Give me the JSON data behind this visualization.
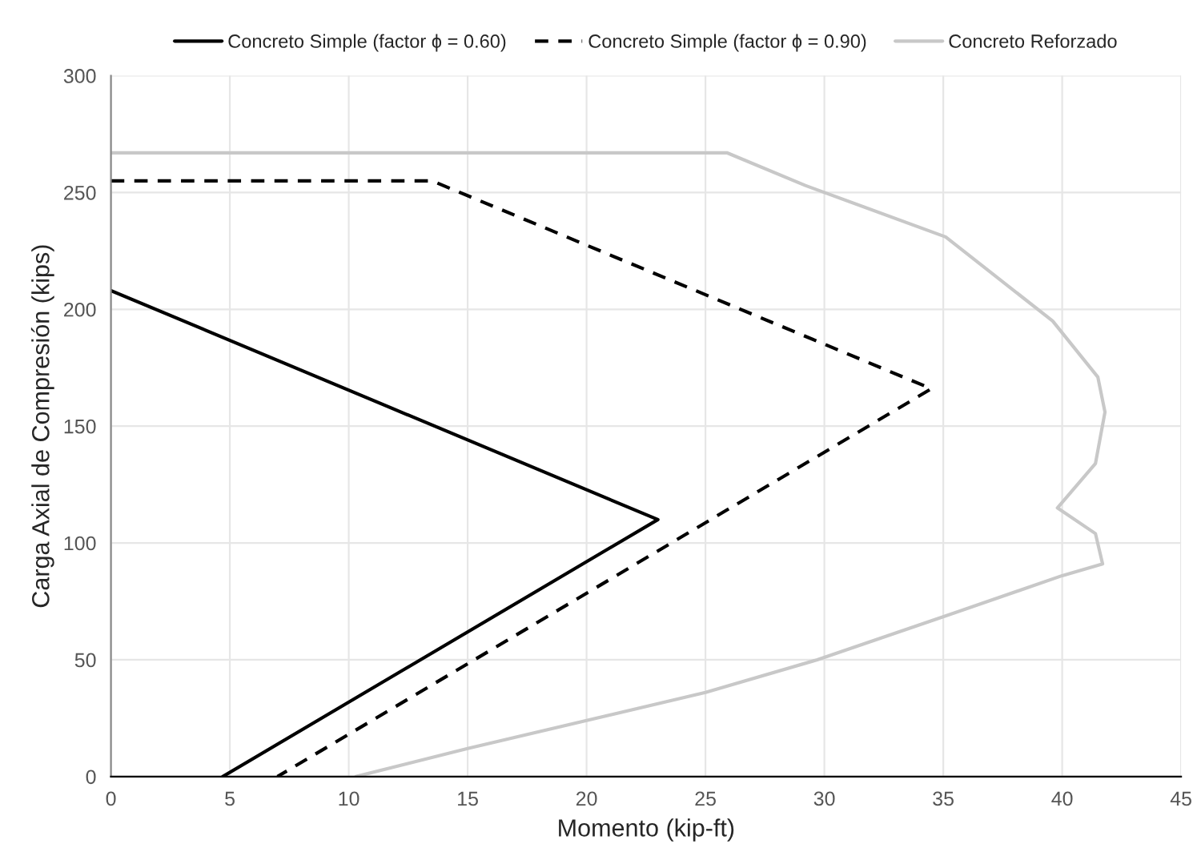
{
  "chart_data": {
    "type": "line",
    "xlabel": "Momento (kip-ft)",
    "ylabel": "Carga Axial de Compresión (kips)",
    "xlim": [
      0,
      45
    ],
    "xticks": [
      0,
      5,
      10,
      15,
      20,
      25,
      30,
      35,
      40,
      45
    ],
    "ylim": [
      0,
      300
    ],
    "yticks": [
      0,
      50,
      100,
      150,
      200,
      250,
      300
    ],
    "grid": true,
    "legend": "top",
    "marker": "none",
    "series": [
      {
        "name": "Concreto Simple (factor ϕ = 0.60)",
        "color": "#000000",
        "line_style": "solid",
        "x": [
          0,
          23,
          4.7
        ],
        "values": [
          208,
          110,
          0
        ]
      },
      {
        "name": "Concreto Simple (factor ϕ = 0.90)",
        "color": "#000000",
        "line_style": "dashed",
        "x": [
          0,
          13.5,
          34.5,
          7
        ],
        "values": [
          255,
          255,
          166,
          0
        ]
      },
      {
        "name": "Concreto Reforzado",
        "color": "#c8c8c8",
        "line_style": "solid",
        "x": [
          0,
          25.9,
          29.2,
          35.1,
          39.6,
          41.5,
          41.8,
          41.4,
          39.8,
          41.4,
          41.7,
          40.0,
          34.6,
          29.7,
          25,
          15,
          10.3
        ],
        "values": [
          267,
          267,
          253,
          231,
          195,
          171,
          156,
          134,
          115,
          104,
          91,
          86,
          67,
          50,
          36,
          12,
          0
        ]
      }
    ]
  }
}
